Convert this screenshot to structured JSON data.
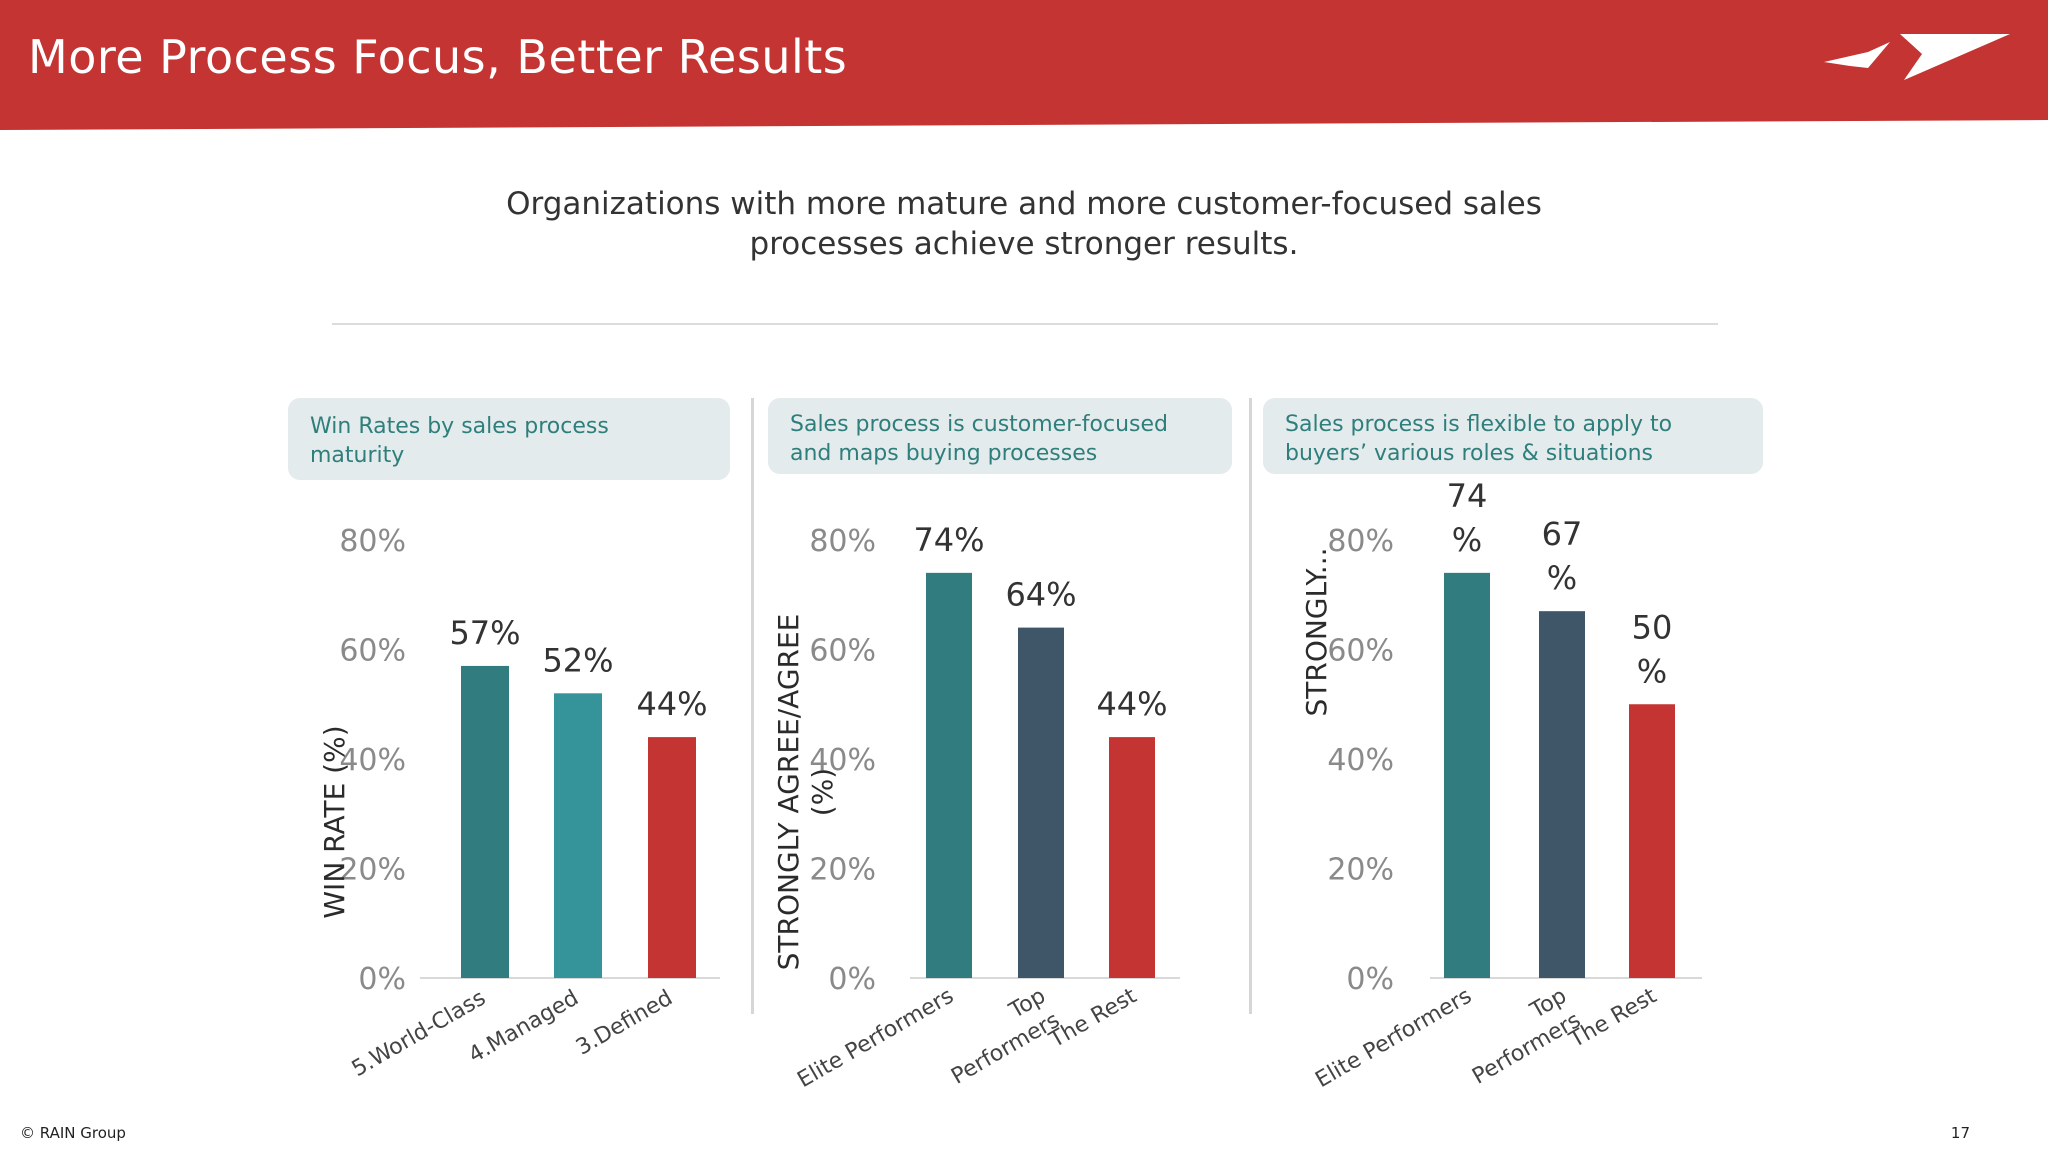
{
  "header": {
    "title": "More Process Focus, Better Results"
  },
  "subtitle": {
    "line1": "Organizations with more mature and more customer-focused  sales",
    "line2": "processes  achieve stronger results."
  },
  "colors": {
    "brand_red": "#c43432",
    "teal_dark": "#317c7e",
    "teal": "#35949a",
    "slate": "#3f5568",
    "red_bar": "#c43432",
    "panel_bg": "#e4ebec",
    "panel_text": "#2e7f7c"
  },
  "icons": [
    "rain-group-logo-icon"
  ],
  "panels": [
    {
      "line1": "Win Rates by sales  process",
      "line2": "maturity"
    },
    {
      "line1": "Sales process  is customer-focused",
      "line2": "and maps buying processes"
    },
    {
      "line1": "Sales process  is flexible to apply to",
      "line2": "buyers’ various roles & situations"
    }
  ],
  "chart_data": [
    {
      "type": "bar",
      "categories": [
        "5.World-Class",
        "4.Managed",
        "3.Defined"
      ],
      "values": [
        57,
        52,
        44
      ],
      "value_labels": [
        [
          "57%"
        ],
        [
          "52%"
        ],
        [
          "44%"
        ]
      ],
      "bar_colors": [
        "#317c7e",
        "#35949a",
        "#c43432"
      ],
      "ylabel": [
        "WIN RATE (%)"
      ],
      "ylim": [
        0,
        80
      ],
      "yticks": [
        "0%",
        "20%",
        "40%",
        "60%",
        "80%"
      ],
      "grid": false
    },
    {
      "type": "bar",
      "categories": [
        [
          "Elite Performers"
        ],
        [
          "Top",
          "Performers"
        ],
        [
          "The Rest"
        ]
      ],
      "values": [
        74,
        64,
        44
      ],
      "value_labels": [
        [
          "74%"
        ],
        [
          "64%"
        ],
        [
          "44%"
        ]
      ],
      "bar_colors": [
        "#317c7e",
        "#3f5568",
        "#c43432"
      ],
      "ylabel": [
        "STRONGLY AGREE/AGREE",
        "(%)"
      ],
      "ylim": [
        0,
        80
      ],
      "yticks": [
        "0%",
        "20%",
        "40%",
        "60%",
        "80%"
      ],
      "grid": false
    },
    {
      "type": "bar",
      "categories": [
        [
          "Elite Performers"
        ],
        [
          "Top",
          "Performers"
        ],
        [
          "The Rest"
        ]
      ],
      "values": [
        74,
        67,
        50
      ],
      "value_labels": [
        [
          "74",
          "%"
        ],
        [
          "67",
          "%"
        ],
        [
          "50",
          "%"
        ]
      ],
      "bar_colors": [
        "#317c7e",
        "#3f5568",
        "#c43432"
      ],
      "ylabel": [
        "STRONGLY..."
      ],
      "ylim": [
        0,
        80
      ],
      "yticks": [
        "0%",
        "20%",
        "40%",
        "60%",
        "80%"
      ],
      "grid": false
    }
  ],
  "footer": {
    "copyright": "© RAIN Group",
    "page_number": "17"
  }
}
